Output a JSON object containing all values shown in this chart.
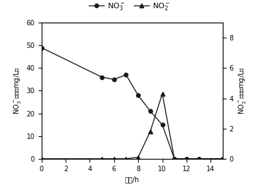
{
  "no3_x": [
    0,
    5,
    6,
    7,
    8,
    9,
    10,
    11,
    12,
    13,
    15
  ],
  "no3_y": [
    49,
    36,
    35,
    37,
    28,
    21,
    15,
    0,
    0,
    0,
    0
  ],
  "no2_x": [
    0,
    5,
    6,
    7,
    8,
    9,
    10,
    11,
    12,
    13,
    15
  ],
  "no2_y": [
    0,
    0,
    0,
    0,
    0.1,
    1.8,
    4.3,
    0,
    0,
    0,
    0
  ],
  "xlim": [
    0,
    15
  ],
  "ylim_left": [
    0,
    60
  ],
  "ylim_right": [
    0,
    9
  ],
  "yticks_left": [
    0,
    10,
    20,
    30,
    40,
    50,
    60
  ],
  "yticks_right": [
    0,
    2,
    4,
    6,
    8
  ],
  "xticks": [
    0,
    2,
    4,
    6,
    8,
    10,
    12,
    14
  ],
  "xlabel": "时间/h",
  "ylabel_left": "NO₃·浓度（mg/L）",
  "ylabel_right": "NO₂·浓度（mg/L）",
  "legend_no3": "NO$_3$'",
  "legend_no2": "NO$_2$'",
  "line_color": "#1a1a1a",
  "marker_circle": "o",
  "marker_triangle": "^",
  "bg_color": "#ffffff",
  "markersize": 4,
  "linewidth": 1.0,
  "tick_fontsize": 7,
  "label_fontsize": 7,
  "legend_fontsize": 8
}
